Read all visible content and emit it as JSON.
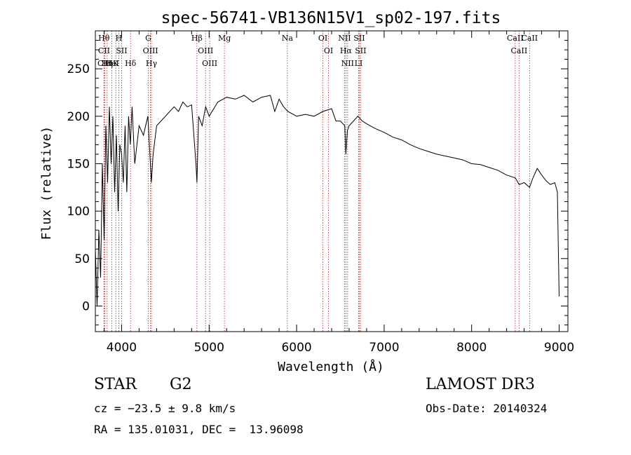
{
  "chart_data": {
    "type": "line",
    "title": "spec-56741-VB136N15V1_sp02-197.fits",
    "xlabel": "Wavelength (Å)",
    "ylabel": "Flux (relative)",
    "xlim": [
      3700,
      9100
    ],
    "ylim": [
      -27,
      290
    ],
    "xticks": [
      4000,
      5000,
      6000,
      7000,
      8000,
      9000
    ],
    "yticks": [
      0,
      50,
      100,
      150,
      200,
      250
    ],
    "series": [
      {
        "name": "flux",
        "x": [
          3700,
          3720,
          3740,
          3760,
          3780,
          3800,
          3820,
          3840,
          3860,
          3880,
          3900,
          3920,
          3940,
          3960,
          3980,
          4000,
          4020,
          4040,
          4060,
          4080,
          4100,
          4120,
          4150,
          4200,
          4250,
          4300,
          4340,
          4360,
          4400,
          4450,
          4500,
          4550,
          4600,
          4650,
          4700,
          4750,
          4800,
          4850,
          4861,
          4880,
          4920,
          4960,
          5000,
          5100,
          5200,
          5300,
          5400,
          5500,
          5600,
          5700,
          5750,
          5800,
          5850,
          5900,
          6000,
          6100,
          6200,
          6300,
          6400,
          6450,
          6500,
          6550,
          6563,
          6580,
          6600,
          6650,
          6700,
          6750,
          6800,
          6900,
          7000,
          7100,
          7200,
          7300,
          7400,
          7500,
          7600,
          7700,
          7800,
          7900,
          8000,
          8100,
          8200,
          8300,
          8400,
          8500,
          8542,
          8600,
          8662,
          8700,
          8750,
          8800,
          8850,
          8900,
          8950,
          8980,
          9000
        ],
        "y": [
          60,
          0,
          80,
          30,
          150,
          70,
          190,
          130,
          210,
          150,
          200,
          120,
          180,
          100,
          170,
          160,
          130,
          190,
          120,
          200,
          170,
          210,
          150,
          190,
          180,
          200,
          130,
          160,
          190,
          195,
          200,
          205,
          210,
          205,
          215,
          210,
          212,
          150,
          130,
          200,
          190,
          210,
          200,
          215,
          220,
          218,
          222,
          215,
          220,
          222,
          205,
          218,
          210,
          205,
          200,
          202,
          200,
          205,
          208,
          195,
          195,
          190,
          160,
          185,
          190,
          195,
          200,
          195,
          192,
          187,
          183,
          178,
          175,
          170,
          166,
          163,
          160,
          158,
          156,
          154,
          150,
          149,
          146,
          143,
          138,
          135,
          128,
          130,
          125,
          135,
          145,
          138,
          132,
          128,
          130,
          120,
          10
        ]
      }
    ],
    "lines": [
      {
        "label": "Hθ",
        "x": 3798
      },
      {
        "label": "CII",
        "x": 3800
      },
      {
        "label": "CIII",
        "x": 3810
      },
      {
        "label": "Hη",
        "x": 3835
      },
      {
        "label": "HeI",
        "x": 3889
      },
      {
        "label": "K",
        "x": 3934
      },
      {
        "label": "H",
        "x": 3968
      },
      {
        "label": "SII",
        "x": 4000
      },
      {
        "label": "Hδ",
        "x": 4102
      },
      {
        "label": "G",
        "x": 4305
      },
      {
        "label": "OIII",
        "x": 4330
      },
      {
        "label": "Hγ",
        "x": 4341
      },
      {
        "label": "Hβ",
        "x": 4861
      },
      {
        "label": "OIII",
        "x": 4959
      },
      {
        "label": "OIII",
        "x": 5007
      },
      {
        "label": "Mg",
        "x": 5175
      },
      {
        "label": "Na",
        "x": 5894
      },
      {
        "label": "OI",
        "x": 6300
      },
      {
        "label": "OI",
        "x": 6364
      },
      {
        "label": "NII",
        "x": 6548
      },
      {
        "label": "Hα",
        "x": 6563
      },
      {
        "label": "NII",
        "x": 6583
      },
      {
        "label": "LI",
        "x": 6708
      },
      {
        "label": "SII",
        "x": 6716
      },
      {
        "label": "SII",
        "x": 6731
      },
      {
        "label": "CaII",
        "x": 8498
      },
      {
        "label": "CaII",
        "x": 8542
      },
      {
        "label": "CaII",
        "x": 8662
      }
    ]
  },
  "info": {
    "class_label": "STAR",
    "subclass": "G2",
    "survey": "LAMOST DR3",
    "cz": "cz = −23.5 ± 9.8 km/s",
    "obs_date": "Obs-Date: 20140324",
    "coords": "RA = 135.01031, DEC =  13.96098"
  },
  "colors": {
    "axes": "#000000",
    "spectrum": "#000000",
    "line_marker": "#b22222",
    "background": "#ffffff"
  }
}
